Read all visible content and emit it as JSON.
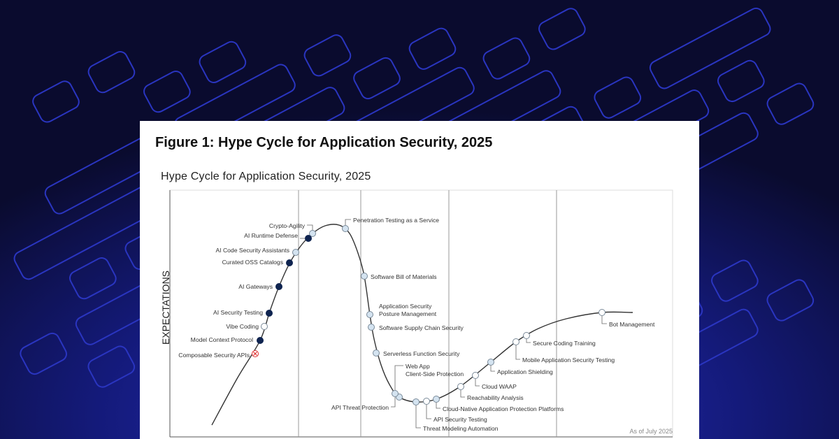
{
  "colors": {
    "background": "#0a0b2e",
    "pattern": "#2a35c0",
    "panel": "#ffffff",
    "curve": "#333333",
    "dark_marker": "#0f2450",
    "light_marker": "#d4e3f0",
    "white_marker": "#ffffff",
    "obsolete_marker": "#e03030"
  },
  "figure_title": "Figure 1: Hype Cycle for Application Security, 2025",
  "chart_data": {
    "type": "hype-cycle",
    "title": "Hype Cycle for Application Security, 2025",
    "ylabel": "EXPECTATIONS",
    "annotation": "As of July 2025",
    "grid": false,
    "items": [
      {
        "name": "Crypto-Agility",
        "marker": "light"
      },
      {
        "name": "AI Runtime Defense",
        "marker": "dark"
      },
      {
        "name": "AI Code Security Assistants",
        "marker": "light"
      },
      {
        "name": "Curated OSS Catalogs",
        "marker": "dark"
      },
      {
        "name": "AI Gateways",
        "marker": "dark"
      },
      {
        "name": "AI Security Testing",
        "marker": "dark"
      },
      {
        "name": "Vibe Coding",
        "marker": "white"
      },
      {
        "name": "Model Context Protocol",
        "marker": "dark"
      },
      {
        "name": "Composable Security APIs",
        "marker": "obsolete"
      },
      {
        "name": "Penetration Testing as a Service",
        "marker": "light"
      },
      {
        "name": "Software Bill of Materials",
        "marker": "light"
      },
      {
        "name": "Application Security\nPosture Management",
        "marker": "light"
      },
      {
        "name": "Software Supply Chain Security",
        "marker": "light"
      },
      {
        "name": "Serverless Function Security",
        "marker": "light"
      },
      {
        "name": "Web App\nClient-Side Protection",
        "marker": "light"
      },
      {
        "name": "API Threat Protection",
        "marker": "light"
      },
      {
        "name": "Threat Modeling Automation",
        "marker": "light"
      },
      {
        "name": "API Security Testing",
        "marker": "white"
      },
      {
        "name": "Cloud-Native Application Protection Platforms",
        "marker": "light"
      },
      {
        "name": "Reachability Analysis",
        "marker": "white"
      },
      {
        "name": "Cloud WAAP",
        "marker": "white"
      },
      {
        "name": "Application Shielding",
        "marker": "light"
      },
      {
        "name": "Mobile Application Security Testing",
        "marker": "white"
      },
      {
        "name": "Secure Coding Training",
        "marker": "white"
      },
      {
        "name": "Bot Management",
        "marker": "white"
      }
    ]
  }
}
